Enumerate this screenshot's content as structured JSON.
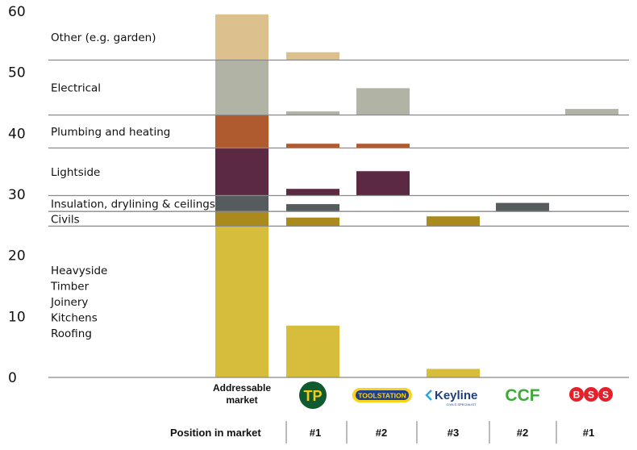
{
  "chart_data": {
    "type": "bar",
    "ylim": [
      0,
      60
    ],
    "y_ticks": [
      "0",
      "10",
      "20",
      "30",
      "40",
      "50",
      "60"
    ],
    "segments": [
      {
        "name": "Heavyside\nTimber\nJoinery\nKitchens\nRoofing",
        "lo": 0,
        "hi": 24.8,
        "color": "#d6bd3c"
      },
      {
        "name": "Civils",
        "lo": 24.8,
        "hi": 27.2,
        "color": "#ab8a1d"
      },
      {
        "name": "Insulation, drylining & ceilings",
        "lo": 27.2,
        "hi": 29.8,
        "color": "#565b5e"
      },
      {
        "name": "Lightside",
        "lo": 29.8,
        "hi": 37.6,
        "color": "#5c2942"
      },
      {
        "name": "Plumbing and heating",
        "lo": 37.6,
        "hi": 43.0,
        "color": "#b05a30"
      },
      {
        "name": "Electrical",
        "lo": 43.0,
        "hi": 52.0,
        "color": "#b1b3a5"
      },
      {
        "name": "Other (e.g. garden)",
        "lo": 52.0,
        "hi": 59.5,
        "color": "#dcc08d"
      }
    ],
    "columns": [
      {
        "label": "Addressable\nmarket",
        "position": ""
      },
      {
        "label": "Travis Perkins",
        "position": "#1"
      },
      {
        "label": "Toolstation",
        "position": "#2"
      },
      {
        "label": "Keyline",
        "position": "#3"
      },
      {
        "label": "CCF",
        "position": "#2"
      },
      {
        "label": "BSS",
        "position": "#1"
      }
    ],
    "bars": [
      {
        "column": 1,
        "segment": 0,
        "value": 8.5
      },
      {
        "column": 1,
        "segment": 1,
        "value": 1.4
      },
      {
        "column": 1,
        "segment": 2,
        "value": 1.2
      },
      {
        "column": 1,
        "segment": 3,
        "value": 1.1
      },
      {
        "column": 1,
        "segment": 4,
        "value": 0.7
      },
      {
        "column": 1,
        "segment": 5,
        "value": 0.6
      },
      {
        "column": 1,
        "segment": 6,
        "value": 1.3
      },
      {
        "column": 2,
        "segment": 3,
        "value": 4.0
      },
      {
        "column": 2,
        "segment": 4,
        "value": 0.7
      },
      {
        "column": 2,
        "segment": 5,
        "value": 4.4
      },
      {
        "column": 3,
        "segment": 0,
        "value": 1.4
      },
      {
        "column": 3,
        "segment": 1,
        "value": 1.6
      },
      {
        "column": 4,
        "segment": 2,
        "value": 1.4
      },
      {
        "column": 5,
        "segment": 5,
        "value": 1.0
      }
    ]
  },
  "footer": {
    "position_label": "Position in market"
  },
  "logos": {
    "tp_text": "TP",
    "toolstation_text": "TOOLSTATION",
    "keyline_text": "Keyline",
    "keyline_sub": "CIVILS SPECIALIST",
    "ccf_text": "CCF",
    "bss_letters": [
      "B",
      "S",
      "S"
    ],
    "colors": {
      "tp_green": "#0f5a2e",
      "tp_yellow": "#f4cd19",
      "toolstation_blue": "#1f3e8f",
      "toolstation_yellow": "#f7d31b",
      "keyline_blue": "#1f3f7c",
      "keyline_accent": "#2aa7d8",
      "ccf_green": "#3cab35",
      "bss_red": "#e4202a"
    }
  }
}
